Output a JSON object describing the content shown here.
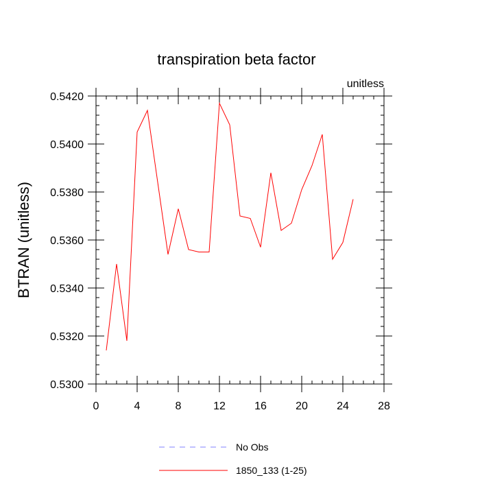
{
  "chart_data": {
    "type": "line",
    "title": "transpiration beta factor",
    "units_label": "unitless",
    "xlabel": "",
    "ylabel": "BTRAN  (unitless)",
    "xlim": [
      0,
      28
    ],
    "ylim": [
      0.53,
      0.542
    ],
    "x_ticks": [
      0,
      4,
      8,
      12,
      16,
      20,
      24,
      28
    ],
    "x_tick_labels": [
      "0",
      "4",
      "8",
      "12",
      "16",
      "20",
      "24",
      "28"
    ],
    "y_ticks": [
      0.53,
      0.532,
      0.534,
      0.536,
      0.538,
      0.54,
      0.542
    ],
    "y_tick_labels": [
      "0.5300",
      "0.5320",
      "0.5340",
      "0.5360",
      "0.5380",
      "0.5400",
      "0.5420"
    ],
    "grid": false,
    "legend_position": "bottom-center",
    "series": [
      {
        "name": "No Obs",
        "color": "#8080ff",
        "dash": "dashed",
        "x": [],
        "y": []
      },
      {
        "name": "1850_133 (1-25)",
        "color": "#ff0000",
        "dash": "solid",
        "x": [
          1,
          2,
          3,
          4,
          5,
          6,
          7,
          8,
          9,
          10,
          11,
          12,
          13,
          14,
          15,
          16,
          17,
          18,
          19,
          20,
          21,
          22,
          23,
          24,
          25
        ],
        "y": [
          0.5314,
          0.535,
          0.5318,
          0.5405,
          0.5414,
          0.5384,
          0.5354,
          0.5373,
          0.5356,
          0.5355,
          0.5355,
          0.5417,
          0.5408,
          0.537,
          0.5369,
          0.5357,
          0.5388,
          0.5364,
          0.5367,
          0.5381,
          0.5391,
          0.5404,
          0.5352,
          0.5359,
          0.5377
        ]
      }
    ]
  }
}
